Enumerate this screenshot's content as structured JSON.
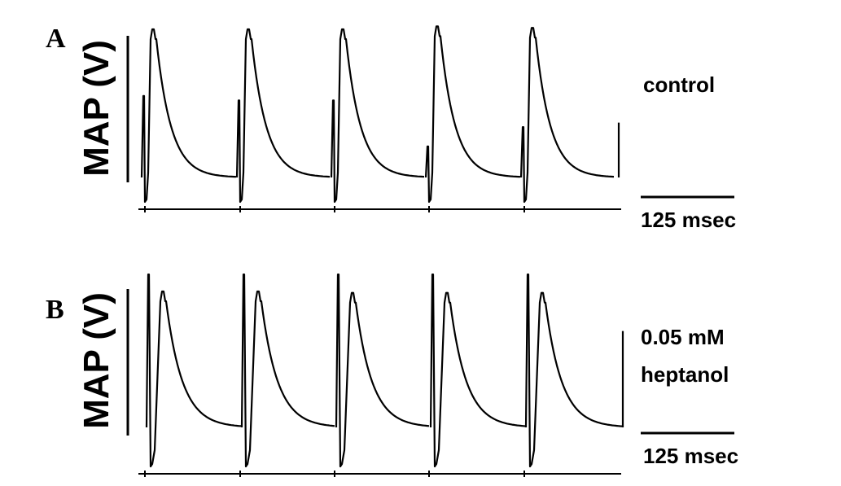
{
  "chart_data": [
    {
      "type": "line",
      "panel_label": "A",
      "ylabel": "MAP (V)",
      "condition_label": [
        "control"
      ],
      "scale_bar_label": "125 msec",
      "beat_count": 5,
      "beats": [
        {
          "artifact_peak": 0.55,
          "map_peak": 1.0
        },
        {
          "artifact_peak": 0.52,
          "map_peak": 1.0
        },
        {
          "artifact_peak": 0.52,
          "map_peak": 1.0
        },
        {
          "artifact_peak": 0.21,
          "map_peak": 1.02
        },
        {
          "artifact_peak": 0.34,
          "map_peak": 1.01
        }
      ],
      "end_artifact_peak": 0.37
    },
    {
      "type": "line",
      "panel_label": "B",
      "ylabel": "MAP (V)",
      "condition_label": [
        "0.05 mM",
        "heptanol"
      ],
      "scale_bar_label": "125 msec",
      "beat_count": 5,
      "beats": [
        {
          "artifact_peak": 1.08,
          "map_peak": 0.96
        },
        {
          "artifact_peak": 1.08,
          "map_peak": 0.96
        },
        {
          "artifact_peak": 1.08,
          "map_peak": 0.95
        },
        {
          "artifact_peak": 1.08,
          "map_peak": 0.95
        },
        {
          "artifact_peak": 1.08,
          "map_peak": 0.95
        }
      ],
      "end_artifact_peak": 0.68
    }
  ]
}
